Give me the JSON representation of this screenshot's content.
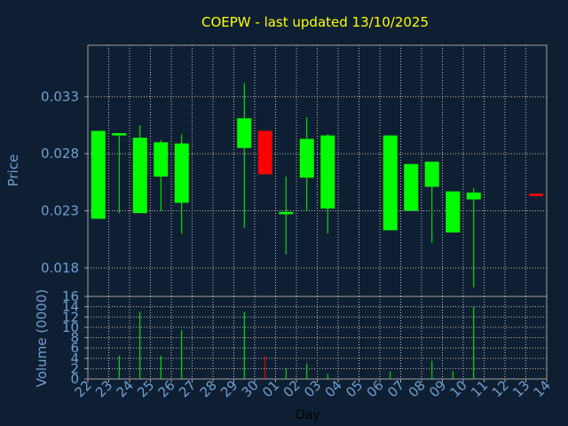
{
  "chart_data": {
    "type": "candlestick",
    "title": "COEPW - last updated 13/10/2025",
    "xlabel": "Day",
    "price_panel": {
      "ylabel": "Price",
      "ylim": [
        0.0155,
        0.0375
      ],
      "yticks": [
        0.018,
        0.023,
        0.028,
        0.033
      ],
      "ytick_labels": [
        "0.018",
        "0.023",
        "0.028",
        "0.033"
      ]
    },
    "volume_panel": {
      "ylabel": "Volume (0000)",
      "ylim": [
        0,
        16
      ],
      "yticks": [
        0,
        2,
        4,
        6,
        8,
        10,
        12,
        14,
        16
      ],
      "ytick_labels": [
        "0",
        "2",
        "4",
        "6",
        "8",
        "10",
        "12",
        "14",
        "16"
      ]
    },
    "x_ticks": [
      "22",
      "23",
      "24",
      "25",
      "26",
      "27",
      "28",
      "29",
      "30",
      "01",
      "02",
      "03",
      "04",
      "05",
      "06",
      "07",
      "08",
      "09",
      "10",
      "11",
      "12",
      "13",
      "14"
    ],
    "colors": {
      "up": "#00ff00",
      "down": "#ff0000",
      "background": "#0f1f33",
      "axis": "#a0a0a0",
      "grid": "#c0c0c0",
      "title": "#ffff00",
      "label": "#6f9fcf"
    },
    "candles": [
      {
        "day": "22",
        "open": 0.0223,
        "high": 0.03,
        "low": 0.0223,
        "close": 0.03,
        "volume": 0
      },
      {
        "day": "23",
        "open": 0.0296,
        "high": 0.0298,
        "low": 0.0228,
        "close": 0.0298,
        "volume": 4.5
      },
      {
        "day": "24",
        "open": 0.0228,
        "high": 0.0305,
        "low": 0.0228,
        "close": 0.0294,
        "volume": 13
      },
      {
        "day": "25",
        "open": 0.026,
        "high": 0.0292,
        "low": 0.023,
        "close": 0.029,
        "volume": 4.5
      },
      {
        "day": "26",
        "open": 0.0237,
        "high": 0.0297,
        "low": 0.021,
        "close": 0.0289,
        "volume": 9.5
      },
      {
        "day": "29",
        "open": 0.0285,
        "high": 0.0342,
        "low": 0.0215,
        "close": 0.0311,
        "volume": 13
      },
      {
        "day": "30",
        "open": 0.03,
        "high": 0.03,
        "low": 0.0262,
        "close": 0.0262,
        "volume": 4.5
      },
      {
        "day": "01",
        "open": 0.0227,
        "high": 0.026,
        "low": 0.0192,
        "close": 0.0229,
        "volume": 2
      },
      {
        "day": "02",
        "open": 0.0259,
        "high": 0.0312,
        "low": 0.023,
        "close": 0.0293,
        "volume": 3
      },
      {
        "day": "03",
        "open": 0.0232,
        "high": 0.0297,
        "low": 0.021,
        "close": 0.0296,
        "volume": 1
      },
      {
        "day": "06",
        "open": 0.0213,
        "high": 0.0296,
        "low": 0.0213,
        "close": 0.0296,
        "volume": 1.5
      },
      {
        "day": "07",
        "open": 0.023,
        "high": 0.0271,
        "low": 0.023,
        "close": 0.0271,
        "volume": 0
      },
      {
        "day": "08",
        "open": 0.0251,
        "high": 0.0273,
        "low": 0.0202,
        "close": 0.0273,
        "volume": 3.5
      },
      {
        "day": "09",
        "open": 0.0211,
        "high": 0.0247,
        "low": 0.0211,
        "close": 0.0247,
        "volume": 1.5
      },
      {
        "day": "10",
        "open": 0.024,
        "high": 0.025,
        "low": 0.0163,
        "close": 0.0246,
        "volume": 14
      },
      {
        "day": "13",
        "open": 0.0245,
        "high": 0.0245,
        "low": 0.0243,
        "close": 0.0243,
        "volume": 0
      }
    ]
  }
}
